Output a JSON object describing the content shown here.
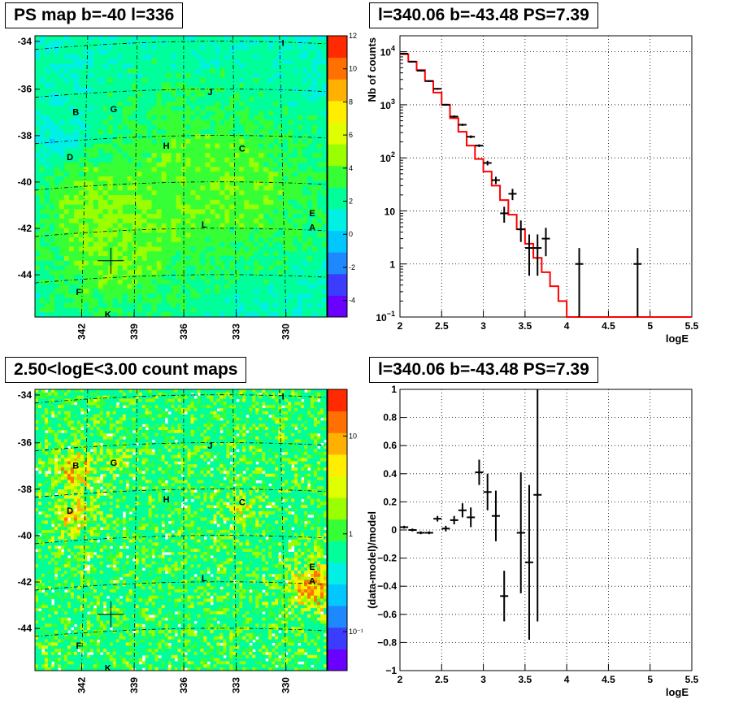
{
  "colors": {
    "model": "#ff0000",
    "data": "#000000",
    "grid": "#000000",
    "palette": [
      "#6a00ff",
      "#3c3cff",
      "#1e88ff",
      "#00c8ff",
      "#00f0e6",
      "#00ff9a",
      "#36ff36",
      "#9aff00",
      "#e0ff00",
      "#ffee00",
      "#ffb000",
      "#ff7000",
      "#ff2a00"
    ]
  },
  "chart_data": [
    {
      "type": "heatmap",
      "title": "PS map b=-40 l=336",
      "xlabel": "",
      "ylabel": "",
      "x_ticks": [
        "342",
        "339",
        "336",
        "333",
        "330"
      ],
      "y_ticks": [
        "-34",
        "-36",
        "-38",
        "-40",
        "-42",
        "-44"
      ],
      "colorbar": {
        "ticks": [
          "12",
          "10",
          "8",
          "6",
          "4",
          "2",
          "0",
          "-2",
          "-4"
        ],
        "range": [
          -5,
          12
        ],
        "scale": "linear"
      },
      "sources": [
        "I",
        "J",
        "B",
        "G",
        "D",
        "H",
        "C",
        "E",
        "A",
        "L",
        "F",
        "K"
      ],
      "description_values": {
        "background_level": 2
      }
    },
    {
      "type": "line",
      "title": "l=340.06 b=-43.48 PS=7.39",
      "xlabel": "logE",
      "ylabel": "Nb of counts",
      "xlim": [
        2,
        5.5
      ],
      "ylim": [
        0.1,
        20000
      ],
      "yscale": "log",
      "grid": true,
      "x_ticks": [
        "2",
        "2.5",
        "3",
        "3.5",
        "4",
        "4.5",
        "5",
        "5.5"
      ],
      "y_ticks": [
        {
          "base": "10",
          "exp": "4"
        },
        {
          "base": "10",
          "exp": "3"
        },
        {
          "base": "10",
          "exp": "2"
        },
        {
          "base": "10",
          "exp": ""
        },
        {
          "base": "1",
          "exp": ""
        },
        {
          "base": "10",
          "exp": "−1"
        }
      ],
      "model": {
        "x": [
          2.0,
          2.1,
          2.2,
          2.3,
          2.4,
          2.5,
          2.6,
          2.7,
          2.8,
          2.9,
          3.0,
          3.1,
          3.2,
          3.3,
          3.4,
          3.5,
          3.6,
          3.7,
          3.8,
          3.9,
          4.0,
          4.1,
          5.5
        ],
        "y": [
          9000,
          6500,
          4500,
          2800,
          1700,
          1000,
          560,
          310,
          170,
          95,
          55,
          30,
          16,
          8.5,
          4.5,
          2.4,
          1.3,
          0.7,
          0.38,
          0.2,
          0.1,
          0.1,
          0.1
        ]
      },
      "data": {
        "x": [
          2.05,
          2.15,
          2.25,
          2.35,
          2.45,
          2.55,
          2.65,
          2.75,
          2.85,
          2.95,
          3.05,
          3.15,
          3.25,
          3.35,
          3.45,
          3.55,
          3.65,
          3.75,
          4.15,
          4.85
        ],
        "y": [
          9200,
          6500,
          4400,
          2800,
          2000,
          1000,
          600,
          420,
          250,
          170,
          80,
          38,
          9,
          21,
          4.5,
          2,
          2,
          3,
          1,
          1
        ],
        "ylo": [
          8900,
          6300,
          4250,
          2700,
          1930,
          960,
          570,
          400,
          235,
          160,
          72,
          32,
          6,
          16,
          2.6,
          0.6,
          0.6,
          1.4,
          0.1,
          0.1
        ],
        "yhi": [
          9500,
          6700,
          4550,
          2900,
          2070,
          1040,
          630,
          440,
          265,
          180,
          88,
          44,
          12,
          26,
          6.6,
          3.6,
          3.6,
          4.8,
          2,
          2
        ]
      }
    },
    {
      "type": "heatmap",
      "title": "2.50<logE<3.00 count maps",
      "xlabel": "",
      "ylabel": "",
      "x_ticks": [
        "342",
        "339",
        "336",
        "333",
        "330"
      ],
      "y_ticks": [
        "-34",
        "-36",
        "-38",
        "-40",
        "-42",
        "-44"
      ],
      "colorbar": {
        "ticks": [
          "10",
          "1",
          "10⁻¹"
        ],
        "range": [
          0.04,
          30
        ],
        "scale": "log"
      },
      "sources": [
        "I",
        "J",
        "B",
        "G",
        "D",
        "H",
        "C",
        "E",
        "A",
        "L",
        "F",
        "K"
      ]
    },
    {
      "type": "scatter",
      "title": "l=340.06 b=-43.48 PS=7.39",
      "xlabel": "logE",
      "ylabel": "(data-model)/model",
      "xlim": [
        2,
        5.5
      ],
      "ylim": [
        -1,
        1
      ],
      "grid": true,
      "x_ticks": [
        "2",
        "2.5",
        "3",
        "3.5",
        "4",
        "4.5",
        "5",
        "5.5"
      ],
      "y_ticks": [
        "1",
        "0.8",
        "0.6",
        "0.4",
        "0.2",
        "0",
        "−0.2",
        "−0.4",
        "−0.6",
        "−0.8",
        "−1"
      ],
      "x": [
        2.05,
        2.15,
        2.25,
        2.35,
        2.45,
        2.55,
        2.65,
        2.75,
        2.85,
        2.95,
        3.05,
        3.15,
        3.25,
        3.45,
        3.55,
        3.65
      ],
      "y": [
        0.02,
        0.0,
        -0.02,
        -0.02,
        0.08,
        0.01,
        0.07,
        0.14,
        0.09,
        0.41,
        0.27,
        0.1,
        -0.47,
        -0.02,
        -0.23,
        0.25
      ],
      "err": [
        0.01,
        0.01,
        0.01,
        0.01,
        0.02,
        0.02,
        0.03,
        0.05,
        0.07,
        0.09,
        0.13,
        0.18,
        0.18,
        0.43,
        0.55,
        0.9
      ]
    }
  ]
}
